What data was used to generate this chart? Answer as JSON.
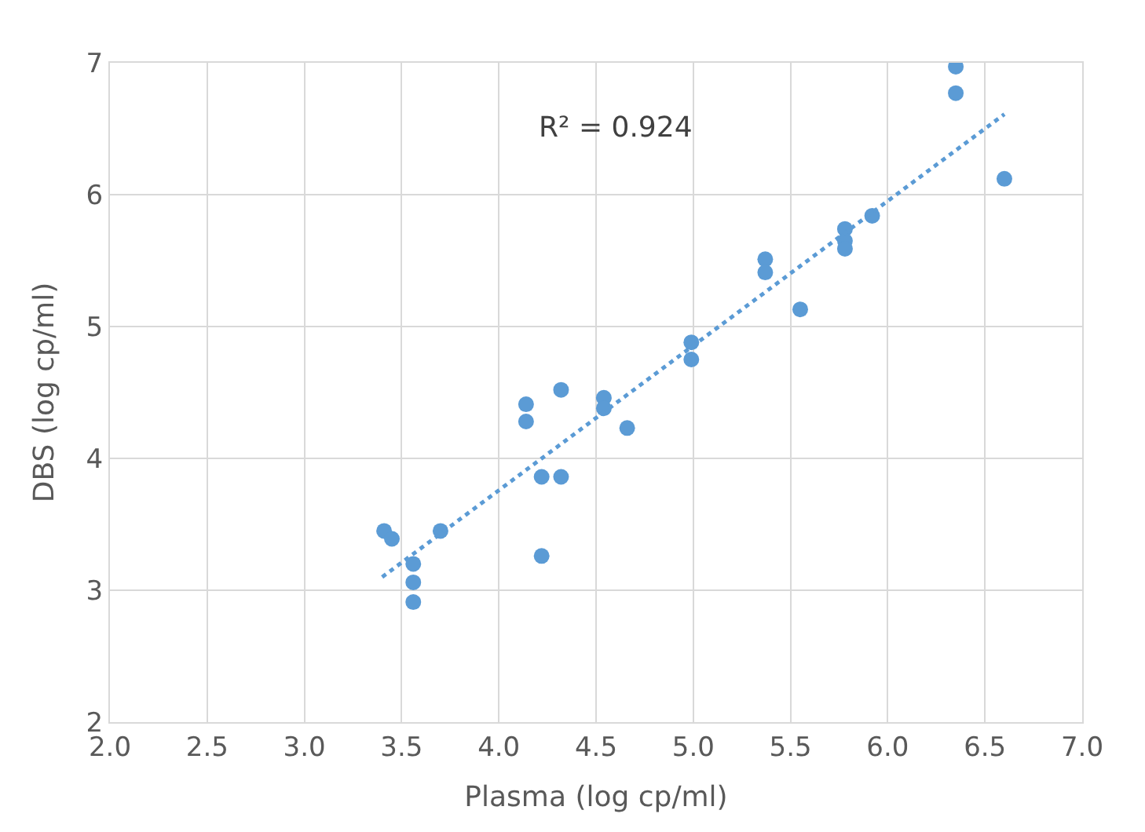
{
  "chart_data": {
    "type": "scatter",
    "xlabel": "Plasma (log cp/ml)",
    "ylabel": "DBS (log cp/ml)",
    "xlim": [
      2.0,
      7.0
    ],
    "xticks": [
      {
        "value": 2.0,
        "label": "2.0"
      },
      {
        "value": 2.5,
        "label": "2.5"
      },
      {
        "value": 3.0,
        "label": "3.0"
      },
      {
        "value": 3.5,
        "label": "3.5"
      },
      {
        "value": 4.0,
        "label": "4.0"
      },
      {
        "value": 4.5,
        "label": "4.5"
      },
      {
        "value": 5.0,
        "label": "5.0"
      },
      {
        "value": 5.5,
        "label": "5.5"
      },
      {
        "value": 6.0,
        "label": "6.0"
      },
      {
        "value": 6.5,
        "label": "6.5"
      },
      {
        "value": 7.0,
        "label": "7.0"
      }
    ],
    "ylim": [
      2,
      7
    ],
    "yticks": [
      2,
      3,
      4,
      5,
      6,
      7
    ],
    "grid": true,
    "marker": "circle",
    "annotations": [
      "R² = 0.924"
    ],
    "series": [
      {
        "color": "#5b9bd5",
        "x": [
          3.41,
          3.45,
          3.56,
          3.56,
          3.56,
          3.7,
          4.14,
          4.14,
          4.32,
          4.22,
          4.32,
          4.22,
          4.54,
          4.54,
          4.66,
          4.99,
          4.99,
          5.37,
          5.37,
          5.55,
          5.78,
          5.78,
          5.78,
          5.92,
          6.35,
          6.35,
          6.6
        ],
        "values": [
          3.45,
          3.39,
          3.2,
          3.06,
          2.91,
          3.45,
          4.41,
          4.28,
          4.52,
          3.86,
          3.86,
          3.26,
          4.46,
          4.38,
          4.23,
          4.88,
          4.75,
          5.51,
          5.41,
          5.13,
          5.74,
          5.65,
          5.59,
          5.84,
          6.97,
          6.77,
          6.12
        ]
      },
      {
        "type": "line",
        "line_style": "dotted",
        "marker": "none",
        "color": "#5b9bd5",
        "x": [
          3.4,
          6.6
        ],
        "values": [
          3.1,
          6.61
        ]
      }
    ]
  }
}
